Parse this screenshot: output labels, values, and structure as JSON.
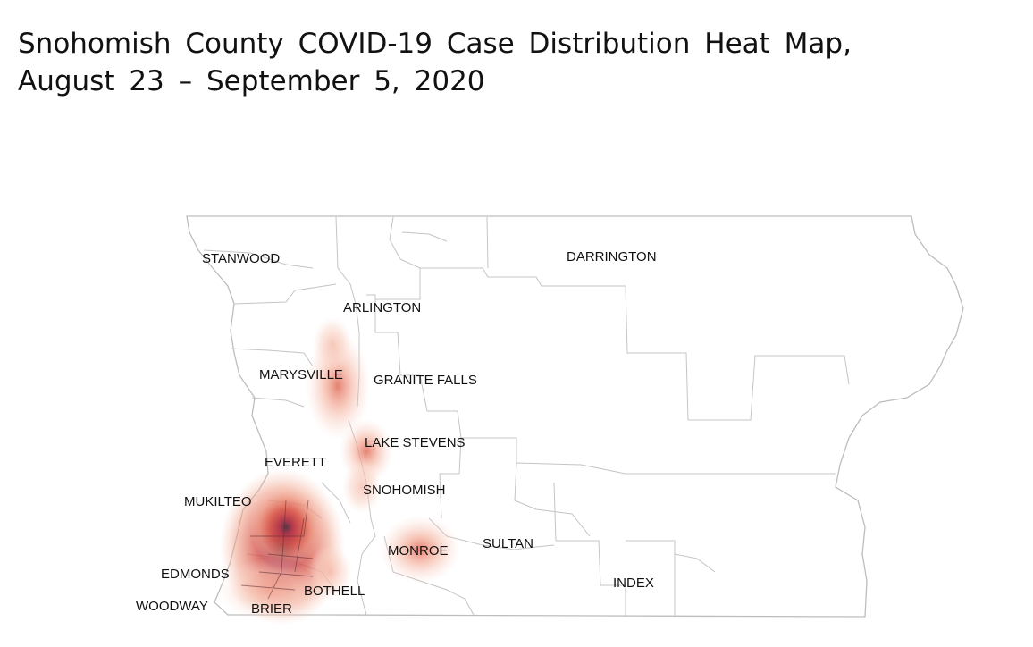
{
  "title": {
    "line1": "Snohomish County COVID-19 Case Distribution Heat Map,",
    "line2": "August 23 – September 5, 2020"
  },
  "map": {
    "colors": {
      "border": "#bdbdbd",
      "heat_low": "#f7c8b6",
      "heat_mid": "#e8826c",
      "heat_high": "#c73a3a",
      "heat_peak": "#5a3a4a"
    },
    "places": [
      {
        "id": "stanwood",
        "label": "STANWOOD"
      },
      {
        "id": "darrington",
        "label": "DARRINGTON"
      },
      {
        "id": "arlington",
        "label": "ARLINGTON"
      },
      {
        "id": "marysville",
        "label": "MARYSVILLE"
      },
      {
        "id": "granite-falls",
        "label": "GRANITE FALLS"
      },
      {
        "id": "lake-stevens",
        "label": "LAKE STEVENS"
      },
      {
        "id": "everett",
        "label": "EVERETT"
      },
      {
        "id": "snohomish",
        "label": "SNOHOMISH"
      },
      {
        "id": "mukilteo",
        "label": "MUKILTEO"
      },
      {
        "id": "monroe",
        "label": "MONROE"
      },
      {
        "id": "sultan",
        "label": "SULTAN"
      },
      {
        "id": "edmonds",
        "label": "EDMONDS"
      },
      {
        "id": "bothell",
        "label": "BOTHELL"
      },
      {
        "id": "index",
        "label": "INDEX"
      },
      {
        "id": "woodway",
        "label": "WOODWAY"
      },
      {
        "id": "brier",
        "label": "BRIER"
      }
    ]
  }
}
